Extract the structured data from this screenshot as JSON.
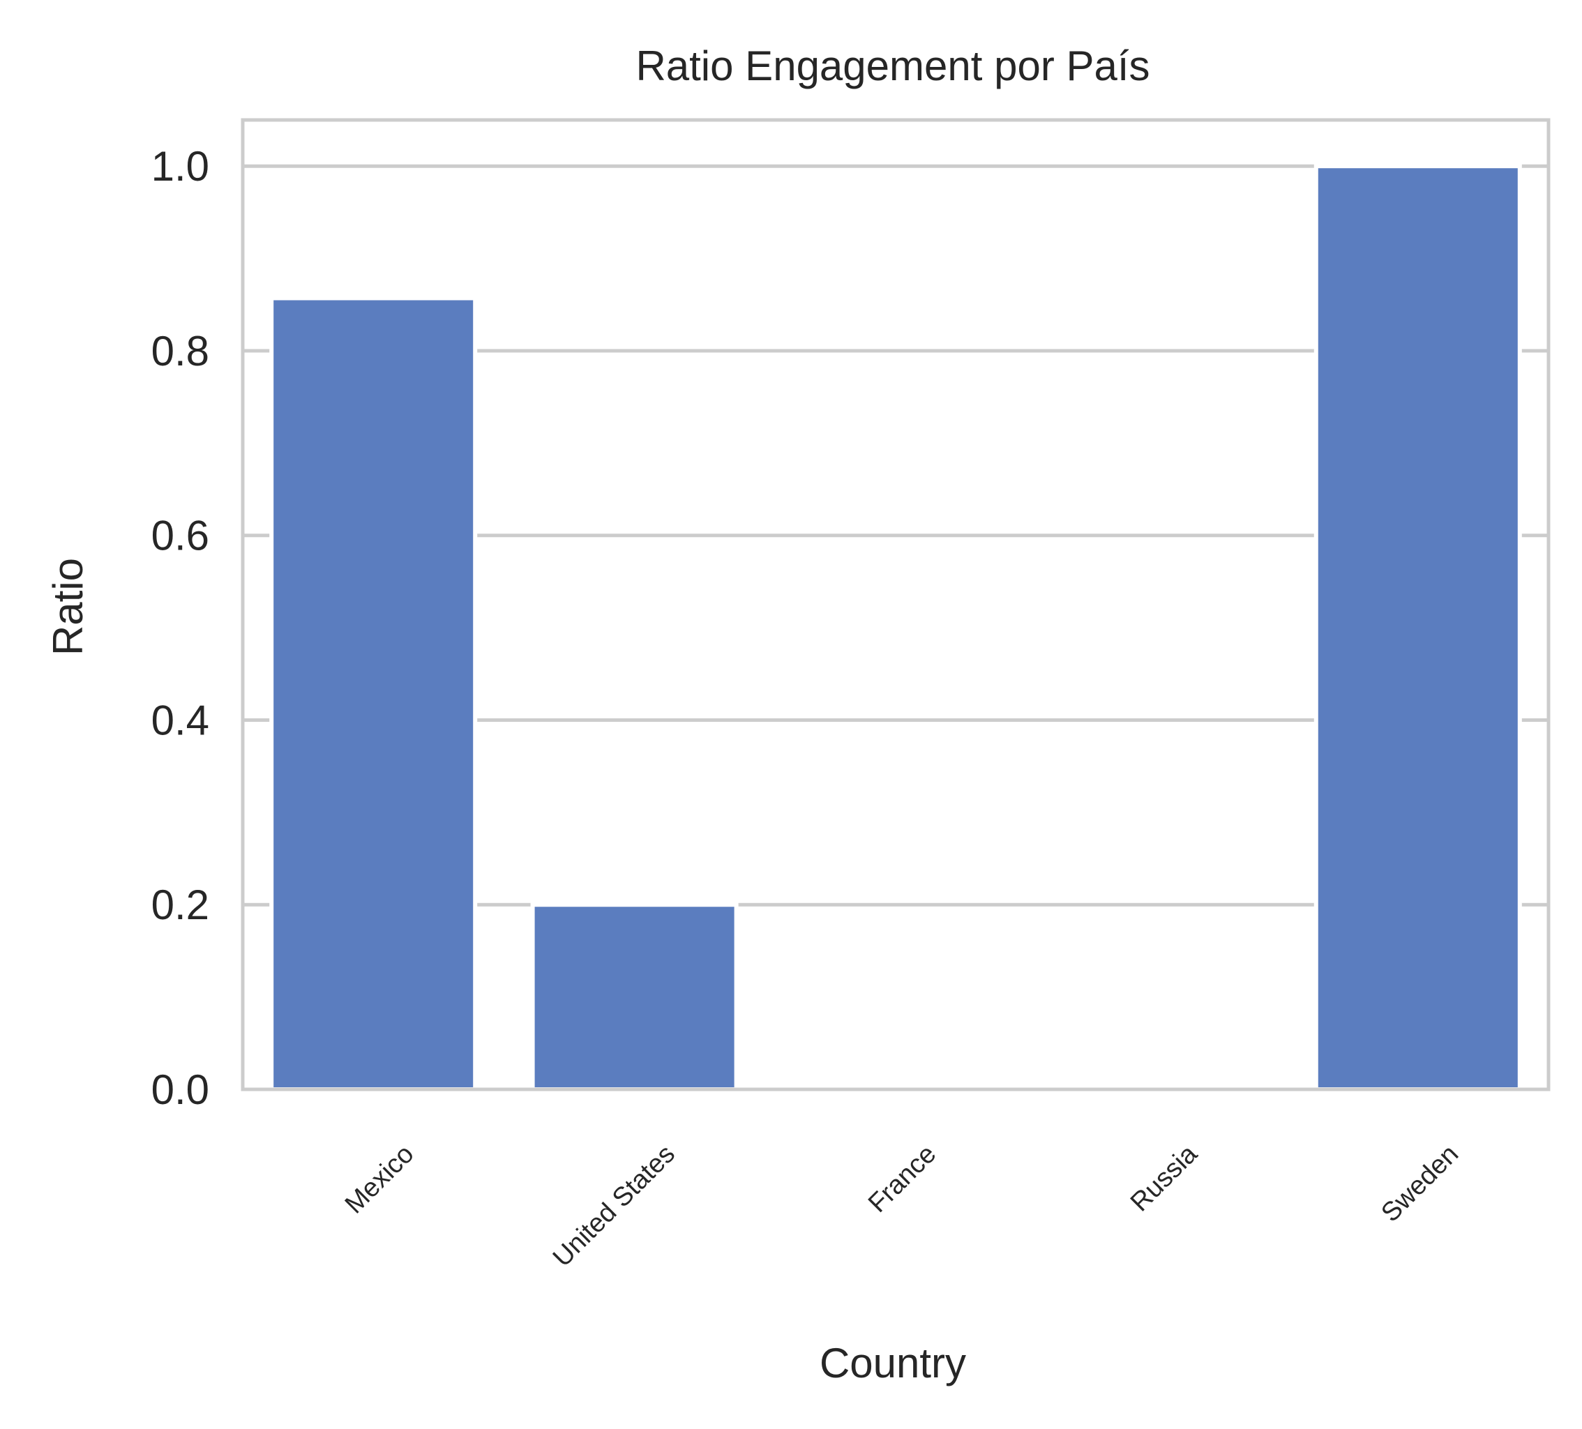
{
  "chart_data": {
    "type": "bar",
    "title": "Ratio Engagement por País",
    "xlabel": "Country",
    "ylabel": "Ratio",
    "categories": [
      "Mexico",
      "United States",
      "France",
      "Russia",
      "Sweden"
    ],
    "values": [
      0.857,
      0.2,
      0.0,
      0.0,
      1.0
    ],
    "ylim": [
      0,
      1.05
    ],
    "yticks": [
      0.0,
      0.2,
      0.4,
      0.6,
      0.8,
      1.0
    ],
    "ytick_labels": [
      "0.0",
      "0.2",
      "0.4",
      "0.6",
      "0.8",
      "1.0"
    ],
    "grid": "y",
    "xtick_rotation_deg": 45,
    "bar_color": "#5b7dbf",
    "grid_color": "#cccccc",
    "text_color": "#262626"
  }
}
